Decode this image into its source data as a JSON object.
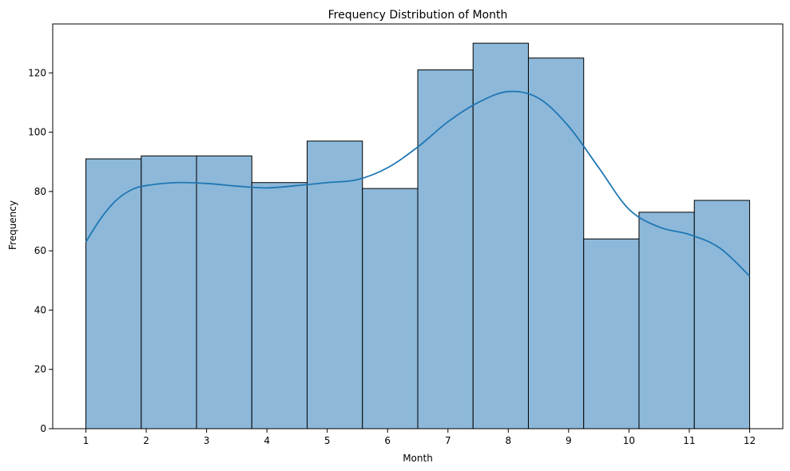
{
  "chart_data": {
    "type": "bar",
    "subtype": "histogram",
    "title": "Frequency Distribution of Month",
    "xlabel": "Month",
    "ylabel": "Frequency",
    "x_ticks": [
      1,
      2,
      3,
      4,
      5,
      6,
      7,
      8,
      9,
      10,
      11,
      12
    ],
    "y_ticks": [
      0,
      20,
      40,
      60,
      80,
      100,
      120
    ],
    "xlim": [
      0.45,
      12.55
    ],
    "ylim": [
      0,
      136.5
    ],
    "bins": [
      {
        "start": 1.0,
        "end": 1.9167,
        "count": 91
      },
      {
        "start": 1.9167,
        "end": 2.8333,
        "count": 92
      },
      {
        "start": 2.8333,
        "end": 3.75,
        "count": 92
      },
      {
        "start": 3.75,
        "end": 4.6667,
        "count": 83
      },
      {
        "start": 4.6667,
        "end": 5.5833,
        "count": 97
      },
      {
        "start": 5.5833,
        "end": 6.5,
        "count": 81
      },
      {
        "start": 6.5,
        "end": 7.4167,
        "count": 121
      },
      {
        "start": 7.4167,
        "end": 8.3333,
        "count": 130
      },
      {
        "start": 8.3333,
        "end": 9.25,
        "count": 125
      },
      {
        "start": 9.25,
        "end": 10.1667,
        "count": 64
      },
      {
        "start": 10.1667,
        "end": 11.0833,
        "count": 73
      },
      {
        "start": 11.0833,
        "end": 12.0,
        "count": 77
      }
    ],
    "kde": [
      [
        1.0,
        63
      ],
      [
        1.25,
        71
      ],
      [
        1.5,
        77
      ],
      [
        1.75,
        80.5
      ],
      [
        2.0,
        82
      ],
      [
        2.5,
        83
      ],
      [
        3.0,
        82.7
      ],
      [
        3.5,
        81.8
      ],
      [
        4.0,
        81.2
      ],
      [
        4.5,
        82
      ],
      [
        5.0,
        83
      ],
      [
        5.5,
        84
      ],
      [
        6.0,
        88
      ],
      [
        6.5,
        95
      ],
      [
        7.0,
        103.5
      ],
      [
        7.5,
        110
      ],
      [
        8.0,
        113.7
      ],
      [
        8.5,
        111.5
      ],
      [
        9.0,
        102
      ],
      [
        9.5,
        88
      ],
      [
        10.0,
        74
      ],
      [
        10.5,
        68
      ],
      [
        11.0,
        65.5
      ],
      [
        11.5,
        61
      ],
      [
        12.0,
        51.5
      ]
    ],
    "grid": false,
    "legend": "none",
    "colors": {
      "bar_fill": "#8db8d9",
      "bar_edge": "#000000",
      "kde_line": "#1f77b4",
      "axis": "#000000"
    }
  }
}
